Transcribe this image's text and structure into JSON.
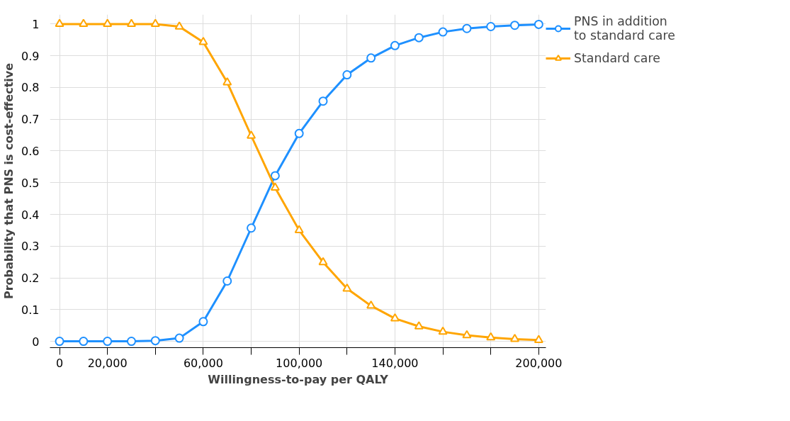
{
  "chart_data": {
    "type": "line",
    "xlabel": "Willingness-to-pay per QALY",
    "ylabel": "Probability that PNS is cost-effective",
    "x": [
      0,
      10000,
      20000,
      30000,
      40000,
      50000,
      60000,
      70000,
      80000,
      90000,
      100000,
      110000,
      120000,
      130000,
      140000,
      150000,
      160000,
      170000,
      180000,
      190000,
      200000
    ],
    "series": [
      {
        "name": "PNS in addition to standard care",
        "color": "#1e90ff",
        "marker": "circle",
        "values": [
          0,
          0,
          0,
          0,
          0.002,
          0.01,
          0.062,
          0.19,
          0.357,
          0.522,
          0.655,
          0.757,
          0.84,
          0.893,
          0.932,
          0.957,
          0.975,
          0.986,
          0.992,
          0.996,
          0.999
        ]
      },
      {
        "name": "Standard care",
        "color": "#ffa500",
        "marker": "triangle",
        "values": [
          1,
          1,
          1,
          1,
          1,
          0.992,
          0.943,
          0.816,
          0.648,
          0.484,
          0.35,
          0.249,
          0.166,
          0.112,
          0.072,
          0.047,
          0.03,
          0.019,
          0.012,
          0.007,
          0.004
        ]
      }
    ],
    "xlim": [
      -4000,
      203000
    ],
    "ylim": [
      -0.02,
      1.03
    ],
    "xticks": [
      {
        "value": 0,
        "label": "0"
      },
      {
        "value": 20000,
        "label": "20,000"
      },
      {
        "value": 40000,
        "label": null
      },
      {
        "value": 60000,
        "label": "60,000"
      },
      {
        "value": 80000,
        "label": null
      },
      {
        "value": 100000,
        "label": "100,000"
      },
      {
        "value": 120000,
        "label": null
      },
      {
        "value": 140000,
        "label": "140,000"
      },
      {
        "value": 160000,
        "label": null
      },
      {
        "value": 180000,
        "label": null
      },
      {
        "value": 200000,
        "label": "200,000"
      }
    ],
    "yticks": [
      0,
      0.1,
      0.2,
      0.3,
      0.4,
      0.5,
      0.6,
      0.7,
      0.8,
      0.9,
      1
    ],
    "grid": true,
    "legend": "top right",
    "line_style": "solid"
  }
}
